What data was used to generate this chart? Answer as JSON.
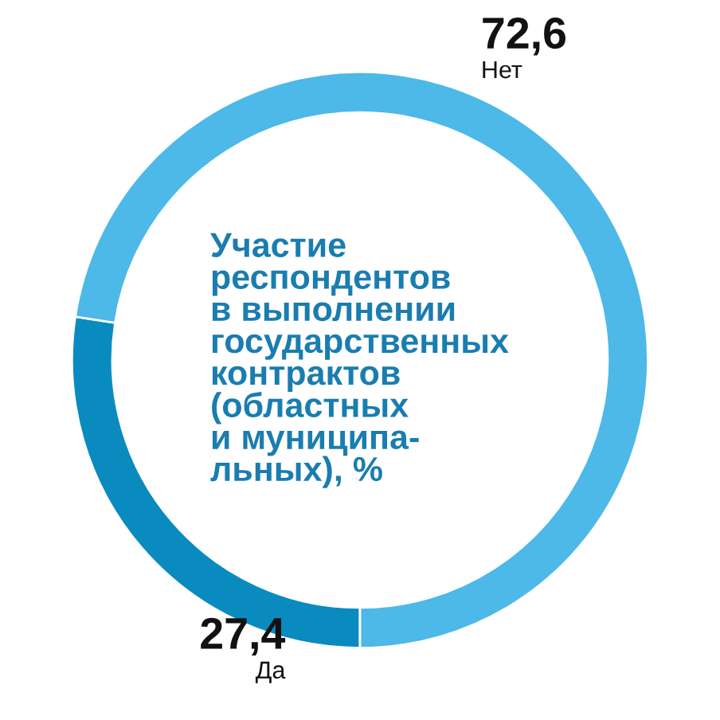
{
  "chart_data": {
    "type": "donut",
    "title": "Участие\nреспондентов\nв выполнении\nгосударственных\nконтрактов\n(областных\nи муниципа-\nльных), %",
    "categories": [
      "Да",
      "Нет"
    ],
    "values": [
      27.4,
      72.6
    ],
    "value_labels": [
      "27,4",
      "72,6"
    ],
    "colors": [
      "#0a8bc0",
      "#4cb9e8"
    ],
    "legend": false
  }
}
